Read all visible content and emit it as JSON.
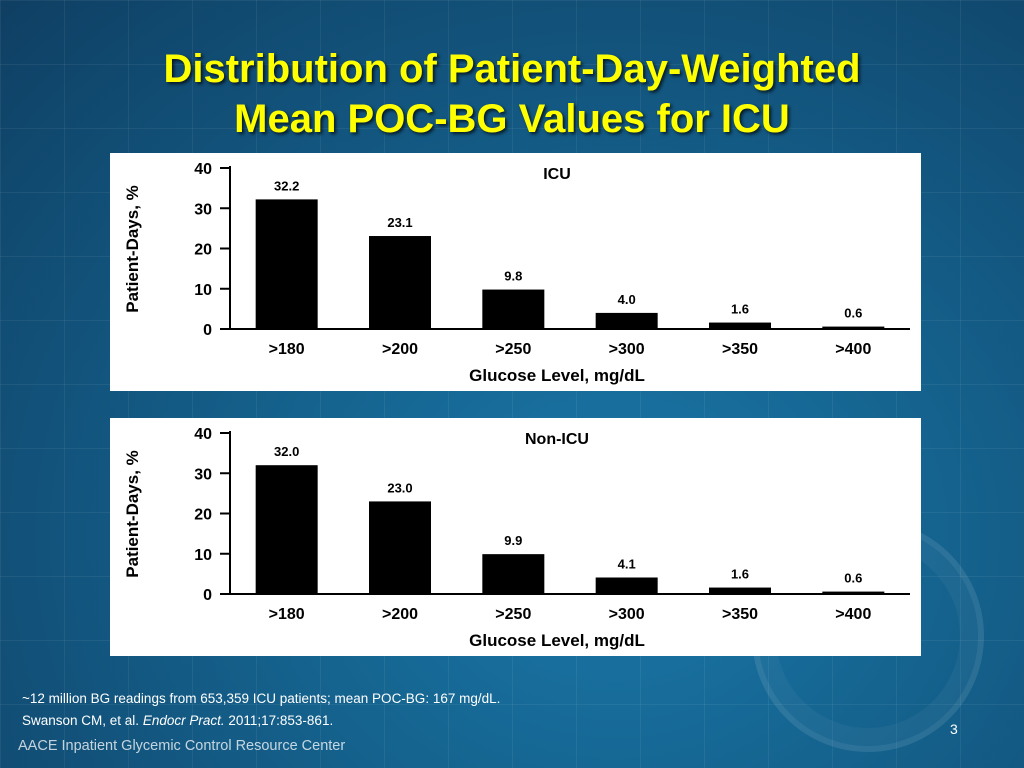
{
  "slide": {
    "title_line1": "Distribution of Patient-Day-Weighted",
    "title_line2": "Mean POC-BG Values for ICU",
    "footnote_line1": "~12 million BG readings from 653,359 ICU patients; mean POC-BG: 167 mg/dL.",
    "citation_authors": "Swanson CM, et al. ",
    "citation_journal": "Endocr Pract.",
    "citation_details": " 2011;17:853-861.",
    "page_number": "3",
    "organization": "AACE Inpatient Glycemic Control Resource Center",
    "title_color": "#ffff00"
  },
  "chart_data": [
    {
      "type": "bar",
      "title": "ICU",
      "categories": [
        ">180",
        ">200",
        ">250",
        ">300",
        ">350",
        ">400"
      ],
      "values": [
        32.2,
        23.1,
        9.8,
        4.0,
        1.6,
        0.6
      ],
      "data_labels": [
        "32.2",
        "23.1",
        "9.8",
        "4.0",
        "1.6",
        "0.6"
      ],
      "xlabel": "Glucose Level, mg/dL",
      "ylabel": "Patient-Days, %",
      "ylim": [
        0,
        40
      ],
      "yticks": [
        0,
        10,
        20,
        30,
        40
      ],
      "grid": false,
      "bar_color": "#000000"
    },
    {
      "type": "bar",
      "title": "Non-ICU",
      "categories": [
        ">180",
        ">200",
        ">250",
        ">300",
        ">350",
        ">400"
      ],
      "values": [
        32.0,
        23.0,
        9.9,
        4.1,
        1.6,
        0.6
      ],
      "data_labels": [
        "32.0",
        "23.0",
        "9.9",
        "4.1",
        "1.6",
        "0.6"
      ],
      "xlabel": "Glucose Level, mg/dL",
      "ylabel": "Patient-Days, %",
      "ylim": [
        0,
        40
      ],
      "yticks": [
        0,
        10,
        20,
        30,
        40
      ],
      "grid": false,
      "bar_color": "#000000"
    }
  ]
}
